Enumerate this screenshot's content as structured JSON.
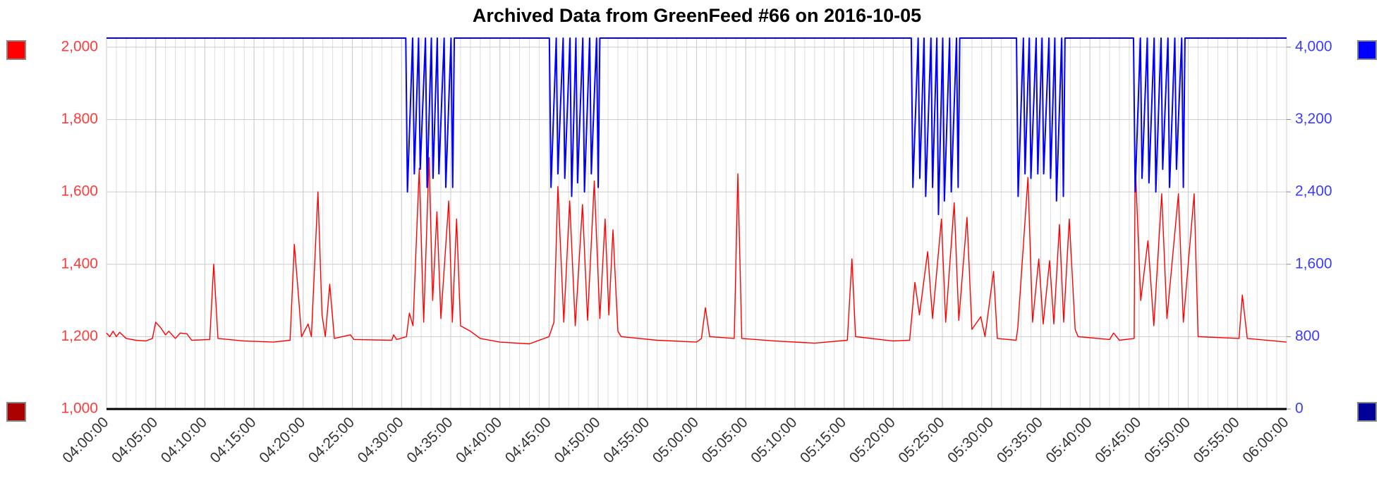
{
  "chart_data": {
    "type": "line",
    "title": "Archived Data from GreenFeed #66 on 2016-10-05",
    "xlim": [
      "04:00:00",
      "06:00:00"
    ],
    "xticks": [
      "04:00:00",
      "04:05:00",
      "04:10:00",
      "04:15:00",
      "04:20:00",
      "04:25:00",
      "04:30:00",
      "04:35:00",
      "04:40:00",
      "04:45:00",
      "04:50:00",
      "04:55:00",
      "05:00:00",
      "05:05:00",
      "05:10:00",
      "05:15:00",
      "05:20:00",
      "05:25:00",
      "05:30:00",
      "05:35:00",
      "05:40:00",
      "05:45:00",
      "05:50:00",
      "05:55:00",
      "06:00:00"
    ],
    "ylim": [
      1000,
      2025
    ],
    "yticks": [
      {
        "value": 1000,
        "label": "1,000"
      },
      {
        "value": 1200,
        "label": "1,200"
      },
      {
        "value": 1400,
        "label": "1,400"
      },
      {
        "value": 1600,
        "label": "1,600"
      },
      {
        "value": 1800,
        "label": "1,800"
      },
      {
        "value": 2000,
        "label": "2,000"
      }
    ],
    "y2lim": [
      0,
      4100
    ],
    "y2ticks": [
      0,
      800,
      {
        "value": 1600,
        "label": "1,600"
      },
      {
        "value": 2400,
        "label": "2,400"
      },
      {
        "value": 3200,
        "label": "3,200"
      },
      {
        "value": 4000,
        "label": "4,000"
      }
    ],
    "grid": true,
    "series": [
      {
        "color": "#ff0000",
        "axis": "y",
        "x": [
          "04:00:00",
          "04:00:20",
          "04:00:40",
          "04:01:00",
          "04:01:20",
          "04:02:00",
          "04:03:00",
          "04:04:00",
          "04:04:40",
          "04:05:00",
          "04:05:30",
          "04:06:00",
          "04:06:20",
          "04:07:00",
          "04:07:30",
          "04:08:10",
          "04:08:40",
          "04:10:30",
          "04:10:54",
          "04:11:20",
          "04:14:00",
          "04:17:00",
          "04:18:40",
          "04:19:06",
          "04:19:30",
          "04:19:50",
          "04:20:30",
          "04:20:50",
          "04:21:30",
          "04:21:55",
          "04:22:15",
          "04:22:42",
          "04:23:10",
          "04:24:48",
          "04:25:10",
          "04:29:00",
          "04:29:12",
          "04:29:30",
          "04:30:30",
          "04:30:48",
          "04:31:10",
          "04:31:48",
          "04:32:15",
          "04:32:48",
          "04:33:10",
          "04:33:36",
          "04:34:00",
          "04:34:48",
          "04:35:10",
          "04:35:36",
          "04:36:00",
          "04:37:00",
          "04:38:00",
          "04:40:00",
          "04:43:00",
          "04:45:00",
          "04:45:30",
          "04:45:54",
          "04:46:30",
          "04:47:06",
          "04:47:40",
          "04:48:24",
          "04:48:55",
          "04:49:36",
          "04:50:10",
          "04:50:42",
          "04:51:05",
          "04:51:30",
          "04:52:00",
          "04:52:20",
          "04:56:00",
          "05:00:00",
          "05:00:30",
          "05:00:54",
          "05:01:20",
          "05:03:50",
          "05:04:12",
          "05:04:36",
          "05:08:00",
          "05:12:00",
          "05:15:20",
          "05:15:48",
          "05:16:10",
          "05:20:00",
          "05:21:40",
          "05:22:12",
          "05:22:40",
          "05:23:30",
          "05:24:00",
          "05:24:54",
          "05:25:20",
          "05:26:12",
          "05:26:40",
          "05:27:30",
          "05:28:00",
          "05:28:54",
          "05:29:20",
          "05:30:12",
          "05:30:35",
          "05:32:30",
          "05:32:40",
          "05:33:42",
          "05:34:10",
          "05:34:48",
          "05:35:15",
          "05:35:54",
          "05:36:20",
          "05:36:54",
          "05:37:20",
          "05:37:54",
          "05:38:30",
          "05:38:48",
          "05:42:00",
          "05:42:24",
          "05:43:00",
          "05:44:30",
          "05:44:36",
          "05:45:10",
          "05:45:54",
          "05:46:30",
          "05:47:18",
          "05:47:50",
          "05:49:00",
          "05:49:30",
          "05:50:36",
          "05:51:00",
          "05:55:10",
          "05:55:30",
          "05:56:00",
          "06:00:00"
        ],
        "values": [
          1210,
          1200,
          1215,
          1200,
          1212,
          1195,
          1190,
          1188,
          1195,
          1240,
          1225,
          1205,
          1215,
          1195,
          1210,
          1208,
          1190,
          1192,
          1400,
          1195,
          1188,
          1185,
          1190,
          1455,
          1320,
          1200,
          1235,
          1200,
          1600,
          1260,
          1200,
          1345,
          1195,
          1205,
          1192,
          1190,
          1205,
          1192,
          1200,
          1265,
          1230,
          1665,
          1240,
          1695,
          1300,
          1545,
          1250,
          1575,
          1240,
          1525,
          1230,
          1215,
          1195,
          1185,
          1180,
          1200,
          1240,
          1615,
          1240,
          1575,
          1230,
          1565,
          1245,
          1630,
          1250,
          1525,
          1260,
          1495,
          1215,
          1200,
          1190,
          1185,
          1195,
          1280,
          1200,
          1195,
          1650,
          1195,
          1188,
          1182,
          1190,
          1415,
          1200,
          1188,
          1190,
          1350,
          1260,
          1435,
          1250,
          1525,
          1240,
          1570,
          1245,
          1530,
          1220,
          1255,
          1200,
          1380,
          1195,
          1190,
          1225,
          1640,
          1240,
          1415,
          1235,
          1410,
          1235,
          1510,
          1240,
          1525,
          1220,
          1200,
          1192,
          1210,
          1190,
          1195,
          1685,
          1300,
          1465,
          1230,
          1595,
          1250,
          1595,
          1240,
          1595,
          1200,
          1195,
          1315,
          1195,
          1185
        ]
      },
      {
        "color": "#0000ff",
        "axis": "y2",
        "x": [
          "04:00:00",
          "04:30:26",
          "04:30:36",
          "04:31:08",
          "04:31:18",
          "04:31:44",
          "04:31:54",
          "04:32:26",
          "04:32:36",
          "04:33:02",
          "04:33:12",
          "04:33:38",
          "04:33:48",
          "04:34:20",
          "04:34:30",
          "04:35:02",
          "04:35:12",
          "04:35:22",
          "04:45:02",
          "04:45:12",
          "04:45:44",
          "04:45:54",
          "04:46:26",
          "04:46:36",
          "04:47:08",
          "04:47:18",
          "04:47:44",
          "04:47:54",
          "04:48:26",
          "04:48:36",
          "04:49:08",
          "04:49:18",
          "04:49:50",
          "04:50:00",
          "04:50:10",
          "05:21:50",
          "05:22:00",
          "05:22:32",
          "05:22:42",
          "05:23:08",
          "05:23:18",
          "05:23:50",
          "05:24:00",
          "05:24:26",
          "05:24:36",
          "05:25:02",
          "05:25:12",
          "05:25:44",
          "05:25:54",
          "05:26:26",
          "05:26:36",
          "05:26:46",
          "05:32:32",
          "05:32:42",
          "05:33:14",
          "05:33:24",
          "05:33:50",
          "05:34:00",
          "05:34:32",
          "05:34:42",
          "05:35:08",
          "05:35:18",
          "05:35:50",
          "05:36:00",
          "05:36:26",
          "05:36:36",
          "05:37:08",
          "05:37:18",
          "05:37:28",
          "05:44:26",
          "05:44:36",
          "05:45:08",
          "05:45:18",
          "05:45:50",
          "05:46:00",
          "05:46:32",
          "05:46:42",
          "05:47:14",
          "05:47:24",
          "05:47:56",
          "05:48:06",
          "05:48:38",
          "05:48:48",
          "05:49:20",
          "05:49:30",
          "05:49:40",
          "06:00:00"
        ],
        "values": [
          4100,
          4100,
          2400,
          4100,
          2600,
          4100,
          2650,
          4100,
          2450,
          4100,
          2550,
          4100,
          2600,
          4100,
          2450,
          4100,
          2450,
          4100,
          4100,
          2450,
          4100,
          2600,
          4100,
          2550,
          4100,
          2350,
          4100,
          2500,
          4100,
          2400,
          4100,
          2600,
          4100,
          2450,
          4100,
          4100,
          2450,
          4100,
          2550,
          4100,
          2350,
          4100,
          2450,
          4100,
          2150,
          4100,
          2300,
          4100,
          2400,
          4100,
          2450,
          4100,
          4100,
          2350,
          4100,
          2600,
          4100,
          2550,
          4100,
          2600,
          4100,
          2600,
          4100,
          2550,
          4100,
          2300,
          4100,
          2350,
          4100,
          4100,
          2400,
          4100,
          2550,
          4100,
          2500,
          4100,
          2400,
          4100,
          2650,
          4100,
          2450,
          4100,
          2650,
          4100,
          2450,
          4100,
          4100
        ]
      }
    ]
  }
}
